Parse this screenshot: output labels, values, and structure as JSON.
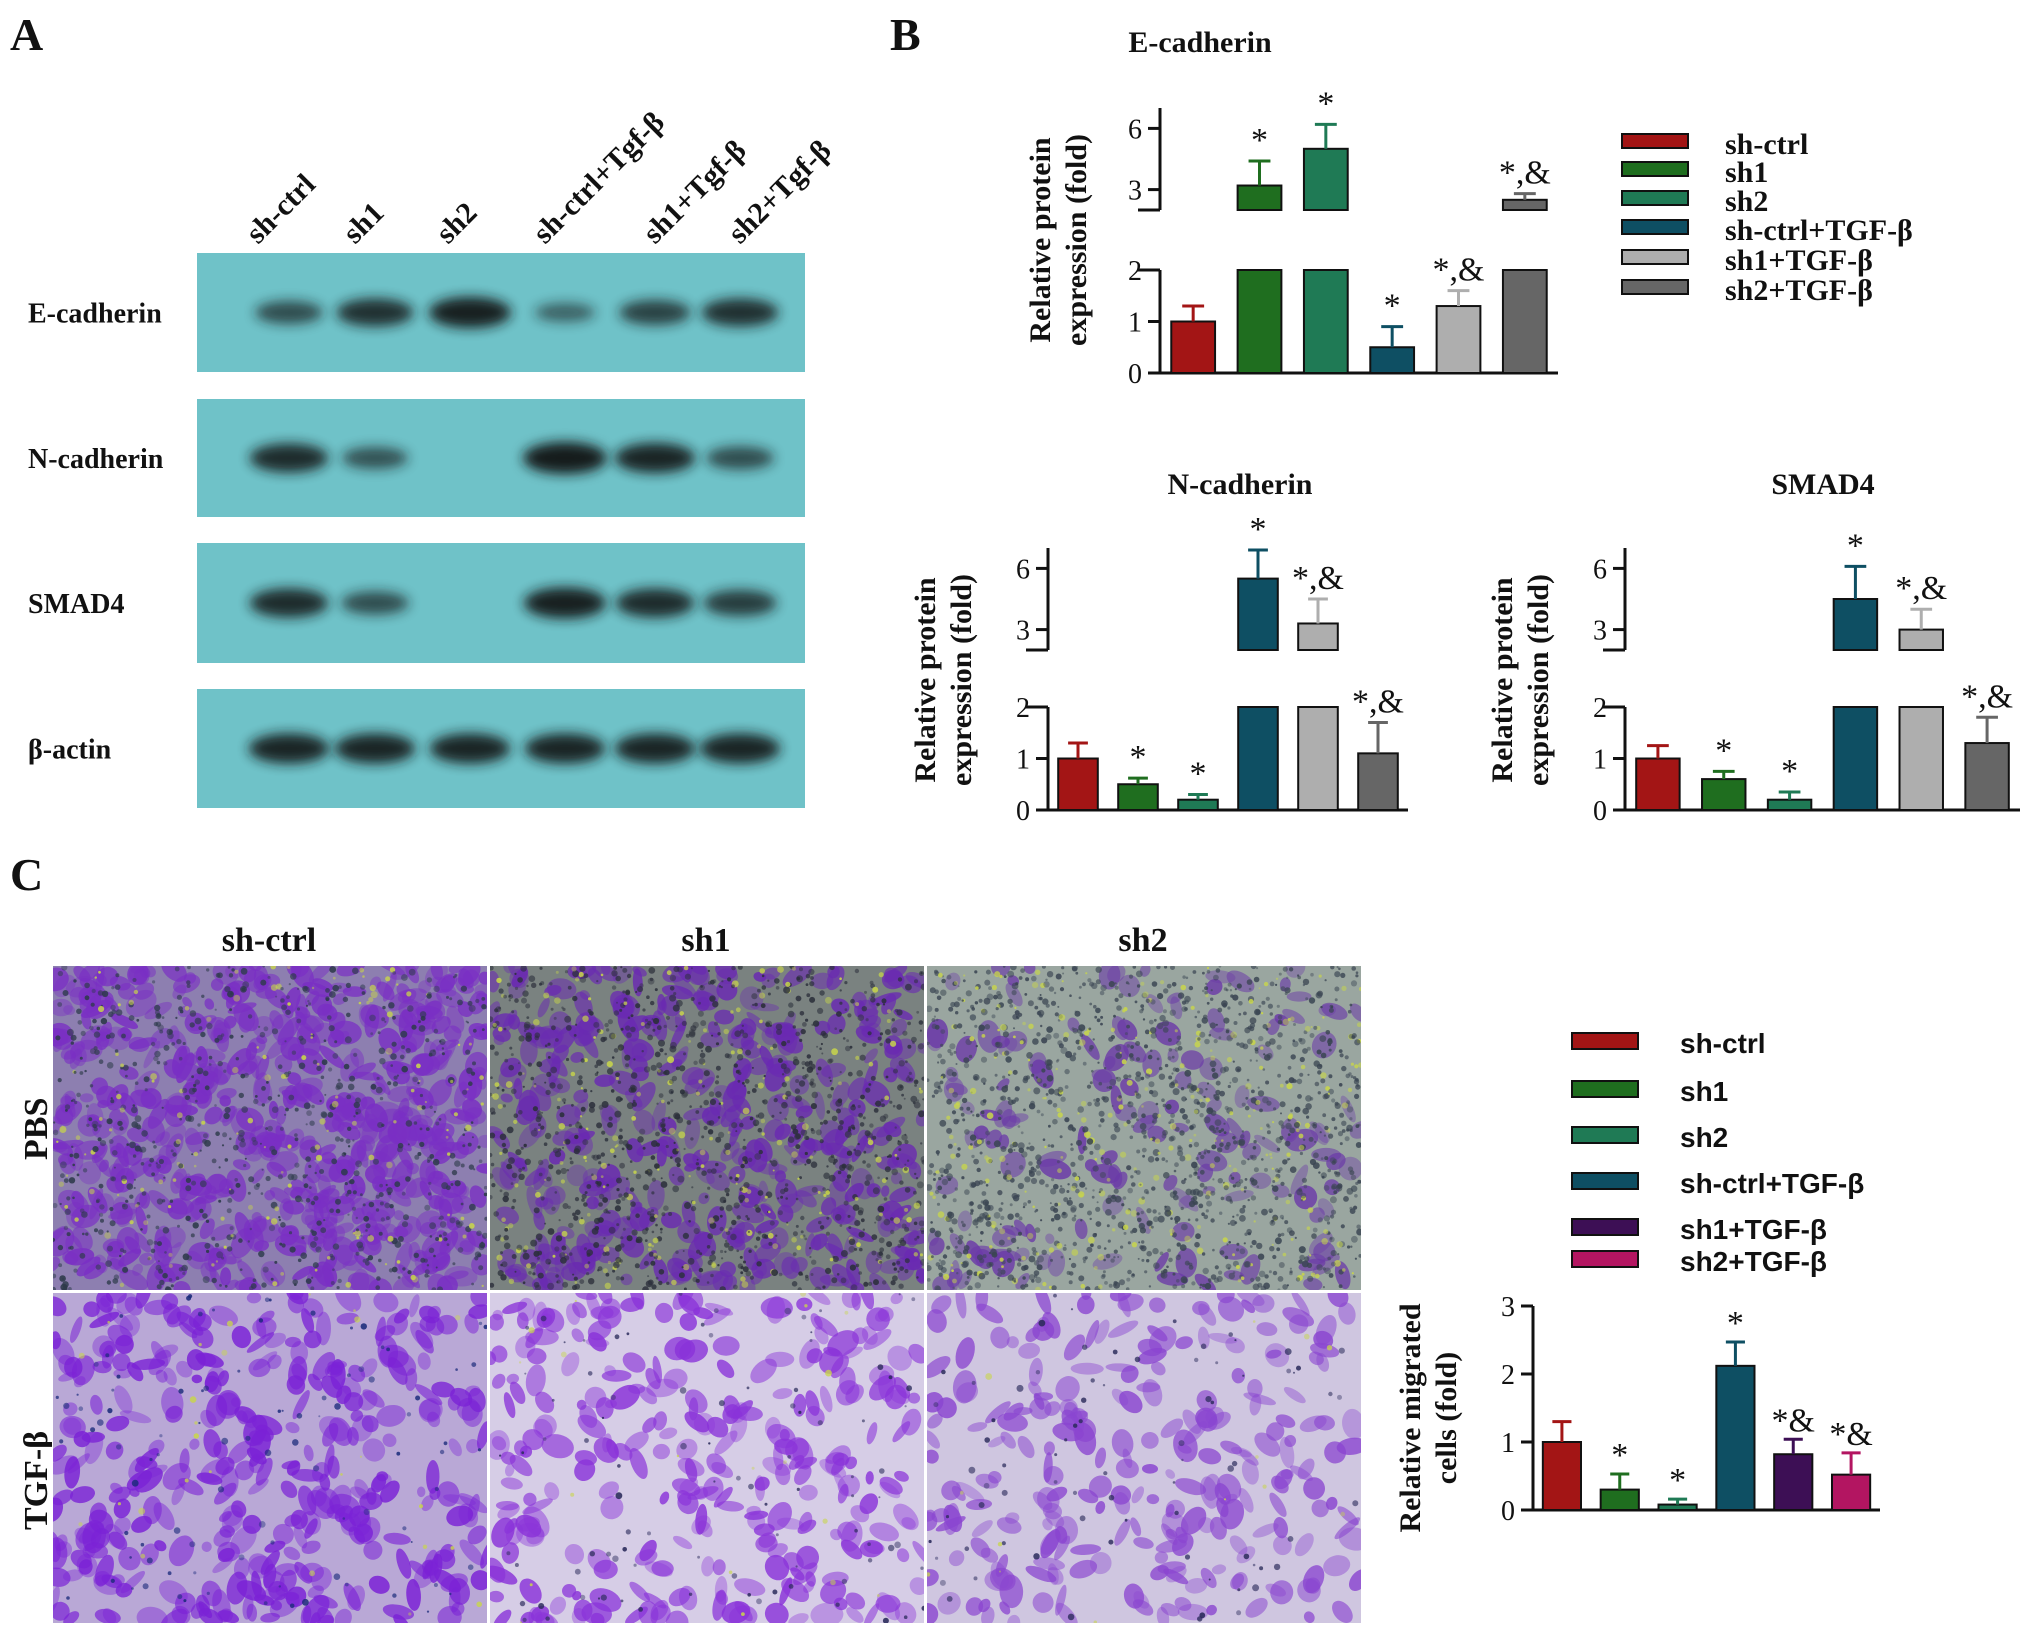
{
  "panels": {
    "a": "A",
    "b": "B",
    "c": "C"
  },
  "blot": {
    "lanes": [
      "sh-ctrl",
      "sh1",
      "sh2",
      "sh-ctrl+Tgf-β",
      "sh1+Tgf-β",
      "sh2+Tgf-β"
    ],
    "bands": [
      {
        "label": "E-cadherin",
        "intensity": [
          0.55,
          0.8,
          0.95,
          0.35,
          0.65,
          0.8
        ]
      },
      {
        "label": "N-cadherin",
        "intensity": [
          0.85,
          0.5,
          0.0,
          1.0,
          0.9,
          0.55
        ]
      },
      {
        "label": "SMAD4",
        "intensity": [
          0.85,
          0.55,
          0.0,
          0.95,
          0.85,
          0.7
        ]
      },
      {
        "label": "β-actin",
        "intensity": [
          0.9,
          0.9,
          0.9,
          0.9,
          0.9,
          0.9
        ]
      }
    ],
    "background": "#6fc2c8"
  },
  "colors": {
    "sh-ctrl": "#a31515",
    "sh1": "#1f6e1f",
    "sh2": "#1f7a55",
    "sh-ctrl+TGF-β": "#0e4f63",
    "sh1+TGF-β": "#aeaeae",
    "sh2+TGF-β": "#666666",
    "sh1+TGF-β_C": "#3d0f55",
    "sh2+TGF-β_C": "#b31561"
  },
  "legend_b": [
    "sh-ctrl",
    "sh1",
    "sh2",
    "sh-ctrl+TGF-β",
    "sh1+TGF-β",
    "sh2+TGF-β"
  ],
  "legend_c": [
    "sh-ctrl",
    "sh1",
    "sh2",
    "sh-ctrl+TGF-β",
    "sh1+TGF-β",
    "sh2+TGF-β"
  ],
  "chart_data": [
    {
      "type": "bar",
      "title": "E-cadherin",
      "ylabel": "Relative protein expression (fold)",
      "categories": [
        "sh-ctrl",
        "sh1",
        "sh2",
        "sh-ctrl+TGF-β",
        "sh1+TGF-β",
        "sh2+TGF-β"
      ],
      "values": [
        1.0,
        3.2,
        5.0,
        0.5,
        1.3,
        2.5
      ],
      "errors": [
        0.3,
        1.2,
        1.2,
        0.4,
        0.3,
        0.3
      ],
      "annotations": [
        "",
        "*",
        "*",
        "*",
        "*,&",
        "*,&"
      ],
      "broken_axis": {
        "lower": [
          0,
          2
        ],
        "upper": [
          2,
          7
        ],
        "lower_ticks": [
          0,
          1,
          2
        ],
        "upper_ticks": [
          3,
          6
        ]
      }
    },
    {
      "type": "bar",
      "title": "N-cadherin",
      "ylabel": "Relative protein expression (fold)",
      "categories": [
        "sh-ctrl",
        "sh1",
        "sh2",
        "sh-ctrl+TGF-β",
        "sh1+TGF-β",
        "sh2+TGF-β"
      ],
      "values": [
        1.0,
        0.5,
        0.2,
        5.5,
        3.3,
        1.1
      ],
      "errors": [
        0.3,
        0.12,
        0.1,
        1.4,
        1.2,
        0.6
      ],
      "annotations": [
        "",
        "*",
        "*",
        "*",
        "*,&",
        "*,&"
      ],
      "broken_axis": {
        "lower": [
          0,
          2
        ],
        "upper": [
          2,
          7
        ],
        "lower_ticks": [
          0,
          1,
          2
        ],
        "upper_ticks": [
          3,
          6
        ]
      }
    },
    {
      "type": "bar",
      "title": "SMAD4",
      "ylabel": "Relative protein expression (fold)",
      "categories": [
        "sh-ctrl",
        "sh1",
        "sh2",
        "sh-ctrl+TGF-β",
        "sh1+TGF-β",
        "sh2+TGF-β"
      ],
      "values": [
        1.0,
        0.6,
        0.2,
        4.5,
        3.0,
        1.3
      ],
      "errors": [
        0.25,
        0.15,
        0.15,
        1.6,
        1.0,
        0.5
      ],
      "annotations": [
        "",
        "*",
        "*",
        "*",
        "*,&",
        "*,&"
      ],
      "broken_axis": {
        "lower": [
          0,
          2
        ],
        "upper": [
          2,
          7
        ],
        "lower_ticks": [
          0,
          1,
          2
        ],
        "upper_ticks": [
          3,
          6
        ]
      }
    },
    {
      "type": "bar",
      "title": "",
      "ylabel": "Relative migrated cells (fold)",
      "categories": [
        "sh-ctrl",
        "sh1",
        "sh2",
        "sh-ctrl+TGF-β",
        "sh1+TGF-β",
        "sh2+TGF-β"
      ],
      "values": [
        1.0,
        0.3,
        0.08,
        2.12,
        0.82,
        0.52
      ],
      "errors": [
        0.3,
        0.23,
        0.08,
        0.35,
        0.22,
        0.32
      ],
      "annotations": [
        "",
        "*",
        "*",
        "*",
        "*&",
        "*&"
      ],
      "ylim": [
        0,
        3
      ],
      "yticks": [
        0,
        1,
        2,
        3
      ]
    }
  ],
  "micrographs": {
    "columns": [
      "sh-ctrl",
      "sh1",
      "sh2"
    ],
    "rows": [
      "PBS",
      "TGF-β"
    ]
  }
}
